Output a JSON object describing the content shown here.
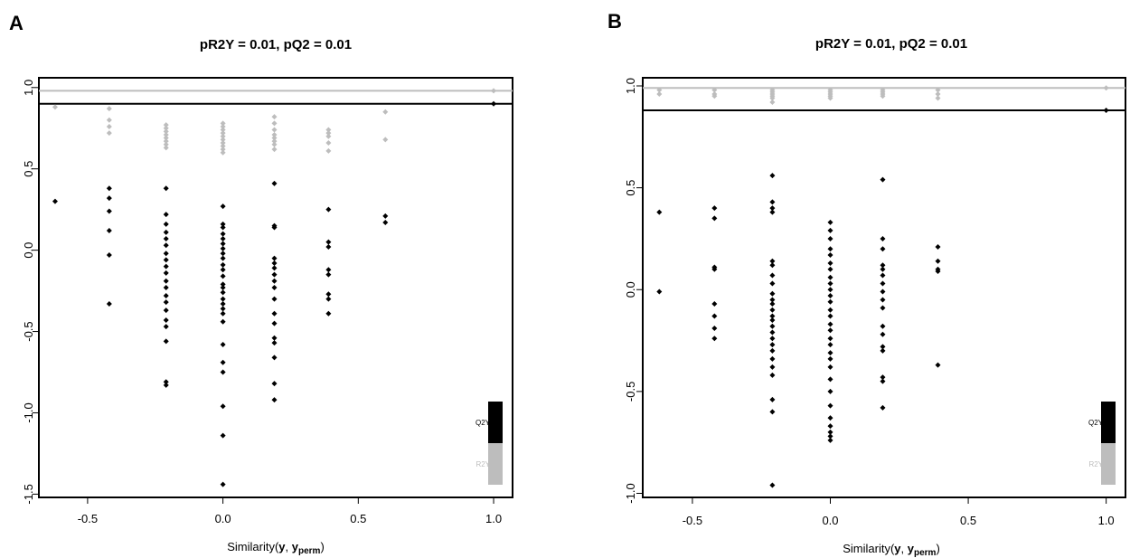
{
  "chart_data": [
    {
      "panel": "A",
      "type": "scatter",
      "title": "pR2Y = 0.01, pQ2 = 0.01",
      "xlabel": {
        "prefix": "Similarity(",
        "bold": "y",
        "sep": ", ",
        "bold2": "y",
        "sub": "perm",
        "suffix": ")"
      },
      "xlim": [
        -0.68,
        1.07
      ],
      "ylim": [
        -1.52,
        1.06
      ],
      "xticks": [
        "-0.5",
        "0.0",
        "0.5",
        "1.0"
      ],
      "yticks": [
        "1.0",
        "0.5",
        "0.0",
        "-0.5",
        "-1.0",
        "-1.5"
      ],
      "grid": false,
      "legend_position": "bottom-right",
      "colors": {
        "R2Y": "#bdbdbd",
        "Q2Y": "#000000"
      },
      "reference_lines": {
        "R2Y": 0.98,
        "Q2Y": 0.9
      },
      "series": [
        {
          "name": "R2Y",
          "points": [
            [
              -0.62,
              0.88
            ],
            [
              -0.42,
              0.87
            ],
            [
              -0.42,
              0.8
            ],
            [
              -0.42,
              0.76
            ],
            [
              -0.42,
              0.72
            ],
            [
              -0.21,
              0.77
            ],
            [
              -0.21,
              0.75
            ],
            [
              -0.21,
              0.73
            ],
            [
              -0.21,
              0.71
            ],
            [
              -0.21,
              0.69
            ],
            [
              -0.21,
              0.67
            ],
            [
              -0.21,
              0.65
            ],
            [
              -0.21,
              0.63
            ],
            [
              0.0,
              0.78
            ],
            [
              0.0,
              0.76
            ],
            [
              0.0,
              0.74
            ],
            [
              0.0,
              0.72
            ],
            [
              0.0,
              0.7
            ],
            [
              0.0,
              0.68
            ],
            [
              0.0,
              0.66
            ],
            [
              0.0,
              0.64
            ],
            [
              0.0,
              0.62
            ],
            [
              0.0,
              0.6
            ],
            [
              0.19,
              0.82
            ],
            [
              0.19,
              0.78
            ],
            [
              0.19,
              0.74
            ],
            [
              0.19,
              0.71
            ],
            [
              0.19,
              0.69
            ],
            [
              0.19,
              0.67
            ],
            [
              0.19,
              0.65
            ],
            [
              0.19,
              0.62
            ],
            [
              0.39,
              0.74
            ],
            [
              0.39,
              0.72
            ],
            [
              0.39,
              0.7
            ],
            [
              0.39,
              0.66
            ],
            [
              0.39,
              0.61
            ],
            [
              0.6,
              0.85
            ],
            [
              0.6,
              0.68
            ],
            [
              1.0,
              0.98
            ]
          ]
        },
        {
          "name": "Q2Y",
          "points": [
            [
              -0.62,
              0.3
            ],
            [
              -0.42,
              0.38
            ],
            [
              -0.42,
              0.32
            ],
            [
              -0.42,
              0.24
            ],
            [
              -0.42,
              0.12
            ],
            [
              -0.42,
              -0.03
            ],
            [
              -0.42,
              -0.33
            ],
            [
              -0.21,
              0.38
            ],
            [
              -0.21,
              0.22
            ],
            [
              -0.21,
              0.16
            ],
            [
              -0.21,
              0.11
            ],
            [
              -0.21,
              0.07
            ],
            [
              -0.21,
              0.03
            ],
            [
              -0.21,
              -0.02
            ],
            [
              -0.21,
              -0.06
            ],
            [
              -0.21,
              -0.1
            ],
            [
              -0.21,
              -0.14
            ],
            [
              -0.21,
              -0.19
            ],
            [
              -0.21,
              -0.23
            ],
            [
              -0.21,
              -0.28
            ],
            [
              -0.21,
              -0.32
            ],
            [
              -0.21,
              -0.37
            ],
            [
              -0.21,
              -0.43
            ],
            [
              -0.21,
              -0.47
            ],
            [
              -0.21,
              -0.56
            ],
            [
              -0.21,
              -0.81
            ],
            [
              -0.21,
              -0.83
            ],
            [
              0.0,
              0.27
            ],
            [
              0.0,
              0.16
            ],
            [
              0.0,
              0.14
            ],
            [
              0.0,
              0.1
            ],
            [
              0.0,
              0.07
            ],
            [
              0.0,
              0.04
            ],
            [
              0.0,
              0.01
            ],
            [
              0.0,
              -0.02
            ],
            [
              0.0,
              -0.05
            ],
            [
              0.0,
              -0.09
            ],
            [
              0.0,
              -0.12
            ],
            [
              0.0,
              -0.16
            ],
            [
              0.0,
              -0.21
            ],
            [
              0.0,
              -0.23
            ],
            [
              0.0,
              -0.26
            ],
            [
              0.0,
              -0.3
            ],
            [
              0.0,
              -0.33
            ],
            [
              0.0,
              -0.36
            ],
            [
              0.0,
              -0.39
            ],
            [
              0.0,
              -0.44
            ],
            [
              0.0,
              -0.58
            ],
            [
              0.0,
              -0.69
            ],
            [
              0.0,
              -0.75
            ],
            [
              0.0,
              -0.96
            ],
            [
              0.0,
              -1.14
            ],
            [
              0.0,
              -1.44
            ],
            [
              0.19,
              0.41
            ],
            [
              0.19,
              0.15
            ],
            [
              0.19,
              0.14
            ],
            [
              0.19,
              -0.05
            ],
            [
              0.19,
              -0.08
            ],
            [
              0.19,
              -0.11
            ],
            [
              0.19,
              -0.15
            ],
            [
              0.19,
              -0.19
            ],
            [
              0.19,
              -0.23
            ],
            [
              0.19,
              -0.3
            ],
            [
              0.19,
              -0.39
            ],
            [
              0.19,
              -0.45
            ],
            [
              0.19,
              -0.54
            ],
            [
              0.19,
              -0.57
            ],
            [
              0.19,
              -0.66
            ],
            [
              0.19,
              -0.82
            ],
            [
              0.19,
              -0.92
            ],
            [
              0.39,
              0.25
            ],
            [
              0.39,
              0.05
            ],
            [
              0.39,
              0.02
            ],
            [
              0.39,
              -0.12
            ],
            [
              0.39,
              -0.15
            ],
            [
              0.39,
              -0.27
            ],
            [
              0.39,
              -0.3
            ],
            [
              0.39,
              -0.39
            ],
            [
              0.6,
              0.21
            ],
            [
              0.6,
              0.17
            ],
            [
              1.0,
              0.9
            ]
          ]
        }
      ]
    },
    {
      "panel": "B",
      "type": "scatter",
      "title": "pR2Y = 0.01, pQ2 = 0.01",
      "xlabel": {
        "prefix": "Similarity(",
        "bold": "y",
        "sep": ", ",
        "bold2": "y",
        "sub": "perm",
        "suffix": ")"
      },
      "xlim": [
        -0.68,
        1.07
      ],
      "ylim": [
        -1.02,
        1.04
      ],
      "xticks": [
        "-0.5",
        "0.0",
        "0.5",
        "1.0"
      ],
      "yticks": [
        "1.0",
        "0.5",
        "0.0",
        "-0.5",
        "-1.0"
      ],
      "grid": false,
      "legend_position": "bottom-right",
      "colors": {
        "R2Y": "#bdbdbd",
        "Q2Y": "#000000"
      },
      "reference_lines": {
        "R2Y": 0.99,
        "Q2Y": 0.88
      },
      "series": [
        {
          "name": "R2Y",
          "points": [
            [
              -0.62,
              0.98
            ],
            [
              -0.62,
              0.96
            ],
            [
              -0.42,
              0.98
            ],
            [
              -0.42,
              0.96
            ],
            [
              -0.42,
              0.95
            ],
            [
              -0.21,
              0.98
            ],
            [
              -0.21,
              0.97
            ],
            [
              -0.21,
              0.96
            ],
            [
              -0.21,
              0.95
            ],
            [
              -0.21,
              0.94
            ],
            [
              -0.21,
              0.92
            ],
            [
              0.0,
              0.98
            ],
            [
              0.0,
              0.97
            ],
            [
              0.0,
              0.96
            ],
            [
              0.0,
              0.95
            ],
            [
              0.0,
              0.94
            ],
            [
              0.19,
              0.98
            ],
            [
              0.19,
              0.97
            ],
            [
              0.19,
              0.96
            ],
            [
              0.19,
              0.95
            ],
            [
              0.39,
              0.98
            ],
            [
              0.39,
              0.96
            ],
            [
              0.39,
              0.94
            ],
            [
              1.0,
              0.99
            ]
          ]
        },
        {
          "name": "Q2Y",
          "points": [
            [
              -0.62,
              0.38
            ],
            [
              -0.62,
              -0.01
            ],
            [
              -0.42,
              0.4
            ],
            [
              -0.42,
              0.35
            ],
            [
              -0.42,
              0.11
            ],
            [
              -0.42,
              0.1
            ],
            [
              -0.42,
              -0.07
            ],
            [
              -0.42,
              -0.13
            ],
            [
              -0.42,
              -0.19
            ],
            [
              -0.42,
              -0.24
            ],
            [
              -0.21,
              0.56
            ],
            [
              -0.21,
              0.43
            ],
            [
              -0.21,
              0.4
            ],
            [
              -0.21,
              0.38
            ],
            [
              -0.21,
              0.14
            ],
            [
              -0.21,
              0.12
            ],
            [
              -0.21,
              0.07
            ],
            [
              -0.21,
              0.03
            ],
            [
              -0.21,
              -0.02
            ],
            [
              -0.21,
              -0.05
            ],
            [
              -0.21,
              -0.07
            ],
            [
              -0.21,
              -0.1
            ],
            [
              -0.21,
              -0.13
            ],
            [
              -0.21,
              -0.15
            ],
            [
              -0.21,
              -0.18
            ],
            [
              -0.21,
              -0.21
            ],
            [
              -0.21,
              -0.24
            ],
            [
              -0.21,
              -0.27
            ],
            [
              -0.21,
              -0.3
            ],
            [
              -0.21,
              -0.34
            ],
            [
              -0.21,
              -0.38
            ],
            [
              -0.21,
              -0.42
            ],
            [
              -0.21,
              -0.54
            ],
            [
              -0.21,
              -0.6
            ],
            [
              -0.21,
              -0.96
            ],
            [
              0.0,
              0.33
            ],
            [
              0.0,
              0.29
            ],
            [
              0.0,
              0.25
            ],
            [
              0.0,
              0.2
            ],
            [
              0.0,
              0.17
            ],
            [
              0.0,
              0.13
            ],
            [
              0.0,
              0.1
            ],
            [
              0.0,
              0.06
            ],
            [
              0.0,
              0.03
            ],
            [
              0.0,
              0.0
            ],
            [
              0.0,
              -0.03
            ],
            [
              0.0,
              -0.06
            ],
            [
              0.0,
              -0.1
            ],
            [
              0.0,
              -0.13
            ],
            [
              0.0,
              -0.17
            ],
            [
              0.0,
              -0.2
            ],
            [
              0.0,
              -0.24
            ],
            [
              0.0,
              -0.27
            ],
            [
              0.0,
              -0.31
            ],
            [
              0.0,
              -0.34
            ],
            [
              0.0,
              -0.38
            ],
            [
              0.0,
              -0.44
            ],
            [
              0.0,
              -0.5
            ],
            [
              0.0,
              -0.57
            ],
            [
              0.0,
              -0.63
            ],
            [
              0.0,
              -0.67
            ],
            [
              0.0,
              -0.7
            ],
            [
              0.0,
              -0.72
            ],
            [
              0.0,
              -0.74
            ],
            [
              0.19,
              0.54
            ],
            [
              0.19,
              0.25
            ],
            [
              0.19,
              0.2
            ],
            [
              0.19,
              0.12
            ],
            [
              0.19,
              0.1
            ],
            [
              0.19,
              0.07
            ],
            [
              0.19,
              0.03
            ],
            [
              0.19,
              -0.01
            ],
            [
              0.19,
              -0.05
            ],
            [
              0.19,
              -0.09
            ],
            [
              0.19,
              -0.18
            ],
            [
              0.19,
              -0.22
            ],
            [
              0.19,
              -0.28
            ],
            [
              0.19,
              -0.3
            ],
            [
              0.19,
              -0.43
            ],
            [
              0.19,
              -0.45
            ],
            [
              0.19,
              -0.58
            ],
            [
              0.39,
              0.21
            ],
            [
              0.39,
              0.14
            ],
            [
              0.39,
              0.1
            ],
            [
              0.39,
              0.09
            ],
            [
              0.39,
              -0.37
            ],
            [
              1.0,
              0.88
            ]
          ]
        }
      ]
    }
  ]
}
